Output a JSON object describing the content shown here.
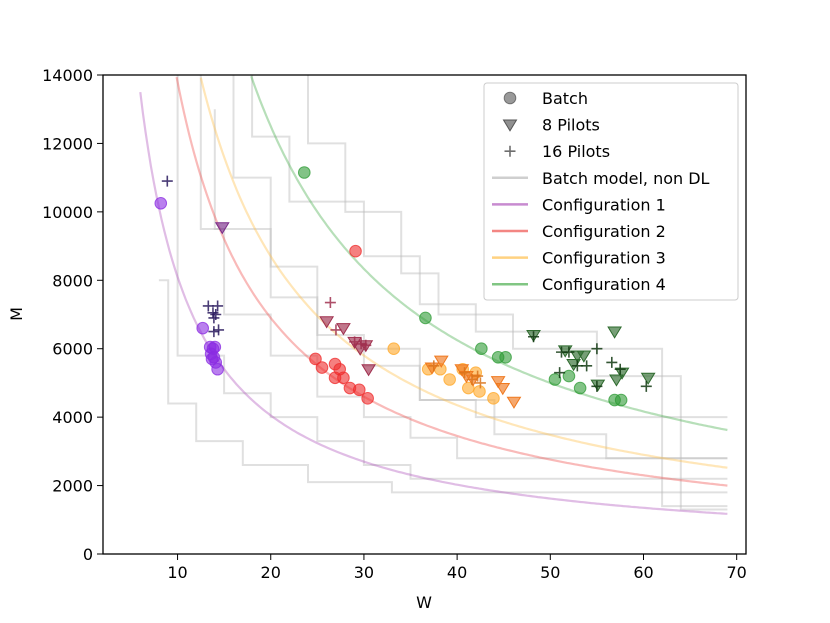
{
  "chart_data": {
    "type": "scatter",
    "xlabel": "W",
    "ylabel": "M",
    "xlim": [
      2,
      71
    ],
    "ylim": [
      0,
      14000
    ],
    "xticks": [
      10,
      20,
      30,
      40,
      50,
      60,
      70
    ],
    "yticks": [
      0,
      2000,
      4000,
      6000,
      8000,
      10000,
      12000,
      14000
    ],
    "legend_position": "top-right",
    "colors": {
      "marker_legend": "#555555",
      "batch_model": "#bbbbbb",
      "cfg1": "#b15bbd",
      "cfg2": "#ef5350",
      "cfg3": "#ffc04d",
      "cfg4": "#4caf50",
      "cfg1_point": "#8a2be2",
      "cfg2_point": "#ef2b2b",
      "cfg3_point": "#ffa726",
      "cfg4_point": "#2e9b36",
      "pilot8": {
        "cfg1": "#7a2c8a",
        "cfg2": "#a0304f",
        "cfg3": "#f07a20",
        "cfg4": "#2e6b2e"
      },
      "pilot16": {
        "cfg1": "#2a1a5e",
        "cfg2": "#a0304f",
        "cfg3": "#d9731a",
        "cfg4": "#103810"
      }
    },
    "legend": [
      {
        "label": "Batch",
        "kind": "circle"
      },
      {
        "label": "8 Pilots",
        "kind": "triangle"
      },
      {
        "label": "16 Pilots",
        "kind": "plus"
      },
      {
        "label": "Batch model, non DL",
        "kind": "line",
        "color": "batch_model"
      },
      {
        "label": "Configuration 1",
        "kind": "line",
        "color": "cfg1"
      },
      {
        "label": "Configuration 2",
        "kind": "line",
        "color": "cfg2"
      },
      {
        "label": "Configuration 3",
        "kind": "line",
        "color": "cfg3"
      },
      {
        "label": "Configuration 4",
        "kind": "line",
        "color": "cfg4"
      }
    ],
    "curves": [
      {
        "name": "Configuration 1",
        "k": 81000,
        "x_start": 6,
        "x_end": 69,
        "color": "cfg1"
      },
      {
        "name": "Configuration 2",
        "k": 138000,
        "x_start": 9.9,
        "x_end": 69,
        "color": "cfg2"
      },
      {
        "name": "Configuration 3",
        "k": 174000,
        "x_start": 12.5,
        "x_end": 69,
        "color": "cfg3"
      },
      {
        "name": "Configuration 4",
        "k": 250000,
        "x_start": 17.9,
        "x_end": 69,
        "color": "cfg4"
      }
    ],
    "step_series": [
      {
        "name": "Batch model, non DL",
        "points": [
          [
            10,
            14000
          ],
          [
            10,
            5800
          ],
          [
            15,
            5800
          ],
          [
            15,
            4700
          ],
          [
            20,
            4700
          ],
          [
            20,
            4000
          ],
          [
            25,
            4000
          ],
          [
            25,
            3300
          ],
          [
            30,
            3300
          ],
          [
            30,
            2600
          ],
          [
            35,
            2600
          ],
          [
            35,
            2200
          ],
          [
            69,
            2200
          ]
        ]
      },
      {
        "name": "Batch model, non DL",
        "points": [
          [
            12.5,
            14000
          ],
          [
            12.5,
            9500
          ],
          [
            15,
            9500
          ],
          [
            15,
            7000
          ],
          [
            20,
            7000
          ],
          [
            20,
            5800
          ],
          [
            25,
            5800
          ],
          [
            25,
            4600
          ],
          [
            30,
            4600
          ],
          [
            30,
            4000
          ],
          [
            35,
            4000
          ],
          [
            35,
            3400
          ],
          [
            40,
            3400
          ],
          [
            40,
            2800
          ],
          [
            69,
            2800
          ]
        ]
      },
      {
        "name": "Batch model, non DL",
        "points": [
          [
            16,
            14000
          ],
          [
            16,
            11000
          ],
          [
            20,
            11000
          ],
          [
            20,
            8400
          ],
          [
            25,
            8400
          ],
          [
            25,
            6400
          ],
          [
            30,
            6400
          ],
          [
            30,
            5500
          ],
          [
            36,
            5500
          ],
          [
            36,
            4500
          ],
          [
            42,
            4500
          ],
          [
            42,
            4000
          ],
          [
            69,
            4000
          ]
        ]
      },
      {
        "name": "Batch model, non DL",
        "points": [
          [
            24,
            14000
          ],
          [
            24,
            12000
          ],
          [
            28,
            12000
          ],
          [
            28,
            10000
          ],
          [
            34,
            10000
          ],
          [
            34,
            8200
          ],
          [
            38,
            8200
          ],
          [
            38,
            7000
          ],
          [
            46,
            7000
          ],
          [
            46,
            6000
          ],
          [
            62,
            6000
          ],
          [
            62,
            1400
          ],
          [
            69,
            1400
          ]
        ]
      },
      {
        "name": "Batch model, non DL",
        "points": [
          [
            14,
            13000
          ],
          [
            14,
            9500
          ],
          [
            20,
            9500
          ],
          [
            20,
            7500
          ],
          [
            25,
            7500
          ],
          [
            25,
            6000
          ],
          [
            36,
            6000
          ],
          [
            36,
            4500
          ],
          [
            44,
            4500
          ],
          [
            44,
            3500
          ],
          [
            56,
            3500
          ],
          [
            56,
            2800
          ],
          [
            69,
            2800
          ]
        ]
      },
      {
        "name": "Batch model, non DL",
        "points": [
          [
            8,
            8000
          ],
          [
            9,
            8000
          ],
          [
            9,
            4400
          ],
          [
            12,
            4400
          ],
          [
            12,
            3300
          ],
          [
            17,
            3300
          ],
          [
            17,
            2600
          ],
          [
            24,
            2600
          ],
          [
            24,
            2100
          ],
          [
            33,
            2100
          ],
          [
            33,
            1800
          ],
          [
            69,
            1800
          ]
        ]
      },
      {
        "name": "Batch model, non DL",
        "points": [
          [
            18,
            14000
          ],
          [
            18,
            12200
          ],
          [
            22,
            12200
          ],
          [
            22,
            10300
          ],
          [
            30,
            10300
          ],
          [
            30,
            8700
          ],
          [
            36,
            8700
          ],
          [
            36,
            7300
          ],
          [
            42,
            7300
          ],
          [
            42,
            6500
          ],
          [
            55,
            6500
          ],
          [
            55,
            5200
          ],
          [
            64,
            5200
          ],
          [
            64,
            1300
          ],
          [
            69,
            1300
          ]
        ]
      }
    ],
    "scatter_series": [
      {
        "name": "Configuration 1",
        "marker": "circle",
        "color": "cfg1_point",
        "points": [
          [
            8.2,
            10250
          ],
          [
            12.7,
            6600
          ],
          [
            13.5,
            6050
          ],
          [
            13.6,
            5850
          ],
          [
            13.8,
            6000
          ],
          [
            14.0,
            6050
          ],
          [
            13.7,
            5700
          ],
          [
            14.1,
            5600
          ],
          [
            14.3,
            5400
          ],
          [
            13.9,
            5750
          ]
        ]
      },
      {
        "name": "Configuration 1",
        "marker": "triangle",
        "color": "pilot8.cfg1",
        "points": [
          [
            14.8,
            9550
          ]
        ]
      },
      {
        "name": "Configuration 1",
        "marker": "plus",
        "color": "pilot16.cfg1",
        "points": [
          [
            8.9,
            10900
          ],
          [
            13.3,
            7250
          ],
          [
            13.8,
            7050
          ],
          [
            14.3,
            7250
          ],
          [
            13.9,
            6900
          ],
          [
            14.1,
            7000
          ],
          [
            13.9,
            6500
          ],
          [
            14.4,
            6550
          ]
        ]
      },
      {
        "name": "Configuration 2",
        "marker": "circle",
        "color": "cfg2_point",
        "points": [
          [
            24.8,
            5700
          ],
          [
            25.5,
            5450
          ],
          [
            26.9,
            5550
          ],
          [
            27.4,
            5400
          ],
          [
            26.9,
            5150
          ],
          [
            27.8,
            5150
          ],
          [
            28.5,
            4850
          ],
          [
            29.5,
            4800
          ],
          [
            30.4,
            4550
          ],
          [
            29.1,
            8850
          ]
        ]
      },
      {
        "name": "Configuration 2",
        "marker": "triangle",
        "color": "pilot8.cfg2",
        "points": [
          [
            26.0,
            6800
          ],
          [
            27.8,
            6600
          ],
          [
            29.0,
            6200
          ],
          [
            29.6,
            6000
          ],
          [
            30.2,
            6100
          ],
          [
            30.5,
            5400
          ]
        ]
      },
      {
        "name": "Configuration 2",
        "marker": "plus",
        "color": "pilot16.cfg2",
        "points": [
          [
            26.4,
            7350
          ],
          [
            27.0,
            6550
          ],
          [
            29.0,
            6200
          ],
          [
            29.7,
            6150
          ],
          [
            30.2,
            6100
          ]
        ]
      },
      {
        "name": "Configuration 3",
        "marker": "circle",
        "color": "cfg3_point",
        "points": [
          [
            33.2,
            6000
          ],
          [
            36.9,
            5400
          ],
          [
            38.2,
            5400
          ],
          [
            39.2,
            5100
          ],
          [
            41.2,
            4850
          ],
          [
            42.4,
            4750
          ],
          [
            43.9,
            4550
          ],
          [
            40.6,
            5400
          ],
          [
            42.0,
            5300
          ]
        ]
      },
      {
        "name": "Configuration 3",
        "marker": "triangle",
        "color": "pilot8.cfg3",
        "points": [
          [
            37.3,
            5450
          ],
          [
            38.3,
            5650
          ],
          [
            40.5,
            5400
          ],
          [
            41.0,
            5200
          ],
          [
            41.7,
            5100
          ],
          [
            44.4,
            5050
          ],
          [
            44.9,
            4850
          ],
          [
            46.1,
            4450
          ]
        ]
      },
      {
        "name": "Configuration 3",
        "marker": "plus",
        "color": "pilot16.cfg3",
        "points": [
          [
            37.5,
            5500
          ],
          [
            40.8,
            5300
          ],
          [
            41.6,
            5100
          ],
          [
            42.2,
            5200
          ],
          [
            42.5,
            5000
          ]
        ]
      },
      {
        "name": "Configuration 4",
        "marker": "circle",
        "color": "cfg4_point",
        "points": [
          [
            23.6,
            11150
          ],
          [
            36.6,
            6900
          ],
          [
            42.6,
            6000
          ],
          [
            44.4,
            5750
          ],
          [
            45.2,
            5750
          ],
          [
            50.5,
            5100
          ],
          [
            52.0,
            5200
          ],
          [
            53.2,
            4850
          ],
          [
            56.9,
            4500
          ],
          [
            57.6,
            4500
          ]
        ]
      },
      {
        "name": "Configuration 4",
        "marker": "triangle",
        "color": "pilot8.cfg4",
        "points": [
          [
            48.2,
            6400
          ],
          [
            51.6,
            5950
          ],
          [
            52.5,
            5550
          ],
          [
            52.9,
            5800
          ],
          [
            53.6,
            5800
          ],
          [
            55.1,
            4950
          ],
          [
            56.9,
            6500
          ],
          [
            57.1,
            5100
          ],
          [
            60.5,
            5150
          ],
          [
            57.7,
            5300
          ]
        ]
      },
      {
        "name": "Configuration 4",
        "marker": "plus",
        "color": "pilot16.cfg4",
        "points": [
          [
            48.2,
            6350
          ],
          [
            51.2,
            5900
          ],
          [
            52.0,
            5900
          ],
          [
            52.9,
            5500
          ],
          [
            53.9,
            5500
          ],
          [
            55.0,
            6000
          ],
          [
            56.6,
            5600
          ],
          [
            57.5,
            5400
          ],
          [
            60.3,
            4900
          ],
          [
            51.0,
            5300
          ],
          [
            55.0,
            4900
          ]
        ]
      }
    ]
  }
}
